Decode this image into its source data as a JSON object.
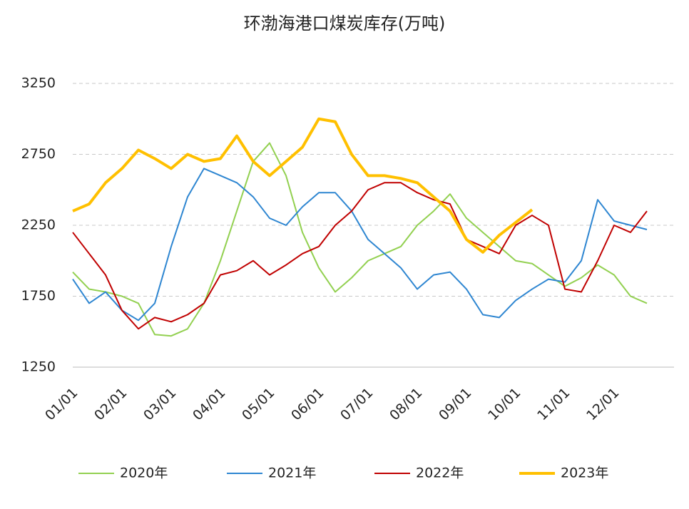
{
  "chart_data": {
    "type": "line",
    "title": "环渤海港口煤炭库存(万吨)",
    "categories": [
      "01/01",
      null,
      null,
      "02/01",
      null,
      null,
      "03/01",
      null,
      null,
      "04/01",
      null,
      null,
      "05/01",
      null,
      null,
      "06/01",
      null,
      null,
      "07/01",
      null,
      null,
      "08/01",
      null,
      null,
      "09/01",
      null,
      null,
      "10/01",
      null,
      null,
      "11/01",
      null,
      null,
      "12/01",
      null,
      null
    ],
    "ylim": [
      1250,
      3250
    ],
    "yticks": [
      1250,
      1750,
      2250,
      2750,
      3250
    ],
    "grid": true,
    "legend": "bottom",
    "series": [
      {
        "name": "2020年",
        "color": "#92d050",
        "width": 2,
        "values": [
          1920,
          1800,
          1780,
          1750,
          1700,
          1480,
          1470,
          1520,
          1700,
          2000,
          2350,
          2700,
          2830,
          2600,
          2200,
          1950,
          1780,
          1880,
          2000,
          2050,
          2100,
          2250,
          2350,
          2470,
          2300,
          2200,
          2100,
          2000,
          1980,
          1900,
          1820,
          1880,
          1970,
          1900,
          1750,
          1700
        ]
      },
      {
        "name": "2021年",
        "color": "#2e86d1",
        "width": 2,
        "values": [
          1870,
          1700,
          1780,
          1650,
          1580,
          1700,
          2100,
          2450,
          2650,
          2600,
          2550,
          2450,
          2300,
          2250,
          2380,
          2480,
          2480,
          2350,
          2150,
          2050,
          1950,
          1800,
          1900,
          1920,
          1800,
          1620,
          1600,
          1720,
          1800,
          1870,
          1850,
          2000,
          2430,
          2280,
          2250,
          2220
        ]
      },
      {
        "name": "2022年",
        "color": "#c00000",
        "width": 2,
        "values": [
          2200,
          2050,
          1900,
          1650,
          1520,
          1600,
          1570,
          1620,
          1700,
          1900,
          1930,
          2000,
          1900,
          1970,
          2050,
          2100,
          2250,
          2350,
          2500,
          2550,
          2550,
          2480,
          2430,
          2400,
          2150,
          2100,
          2050,
          2250,
          2320,
          2250,
          1800,
          1780,
          2000,
          2250,
          2200,
          2350
        ]
      },
      {
        "name": "2023年",
        "color": "#ffc000",
        "width": 4,
        "values": [
          2350,
          2400,
          2550,
          2650,
          2780,
          2720,
          2650,
          2750,
          2700,
          2720,
          2880,
          2700,
          2600,
          2700,
          2800,
          3000,
          2980,
          2750,
          2600,
          2600,
          2580,
          2550,
          2450,
          2350,
          2150,
          2060,
          2180,
          2270,
          2360,
          null,
          null,
          null,
          null,
          null,
          null,
          null
        ]
      }
    ]
  }
}
